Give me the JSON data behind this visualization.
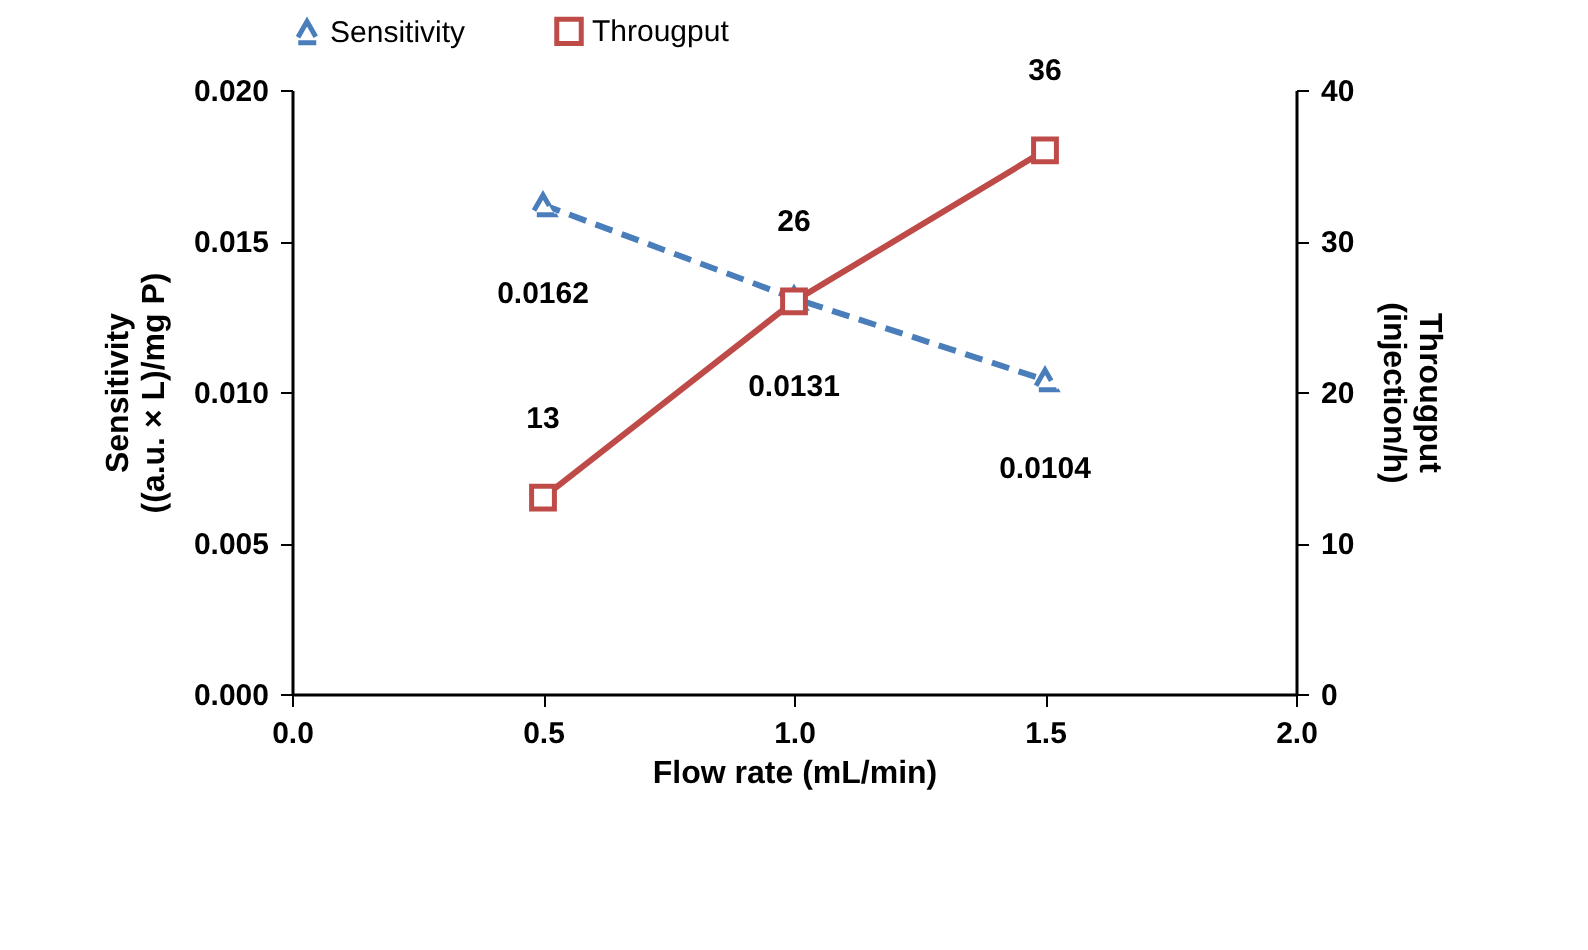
{
  "chart_data": {
    "type": "line",
    "xlabel": "Flow rate (mL/min)",
    "ylabel": "Sensitivity\n((a.u. × L)/mg P)",
    "y2label": "Througput\n(injection/h)",
    "x": [
      0.5,
      1.0,
      1.5
    ],
    "series": [
      {
        "name": "Sensitivity",
        "color": "#4a7ebb",
        "marker": "triangle",
        "line_style": "dashed",
        "values": [
          0.0162,
          0.0131,
          0.0104
        ]
      },
      {
        "name": "Througput",
        "color": "#be4b48",
        "marker": "square",
        "line_style": "solid",
        "axis": "y2",
        "values": [
          13,
          26,
          36
        ]
      }
    ],
    "xlim": [
      0,
      2
    ],
    "xticks": [
      {
        "value": 0,
        "label": "0.0"
      },
      {
        "value": 0.5,
        "label": "0.5"
      },
      {
        "value": 1,
        "label": "1.0"
      },
      {
        "value": 1.5,
        "label": "1.5"
      },
      {
        "value": 2,
        "label": "2.0"
      }
    ],
    "ylim": [
      0,
      0.02
    ],
    "yticks": [
      {
        "value": 0,
        "label": "0.000"
      },
      {
        "value": 0.005,
        "label": "0.005"
      },
      {
        "value": 0.01,
        "label": "0.010"
      },
      {
        "value": 0.015,
        "label": "0.015"
      },
      {
        "value": 0.02,
        "label": "0.020"
      }
    ],
    "y2lim": [
      0,
      40
    ],
    "y2ticks": [
      0,
      10,
      20,
      30,
      40
    ],
    "data_labels": true,
    "grid": false,
    "legend": "top"
  }
}
